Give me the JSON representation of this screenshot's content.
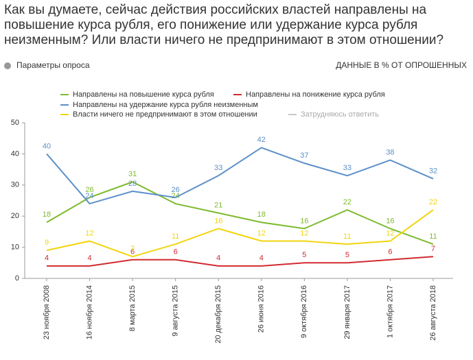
{
  "chart_data": {
    "type": "line",
    "title": "Как вы думаете, сейчас действия российских властей направлены на повышение курса рубля, его понижение или удержание курса рубля неизменным? Или власти ничего не предпринимают в этом отношении?",
    "survey_params": "Параметры опроса",
    "units_note": "ДАННЫЕ В % ОТ ОПРОШЕННЫХ",
    "categories": [
      "23 ноября 2008",
      "16 ноября 2014",
      "8 марта 2015",
      "9 августа 2015",
      "20 декабря 2015",
      "26 июня 2016",
      "9 октября 2016",
      "29 января 2017",
      "1 октября 2017",
      "26 августа 2018"
    ],
    "series": [
      {
        "name": "Направлены на повышение курса рубля",
        "color": "#7dba2e",
        "values": [
          18,
          26,
          31,
          24,
          21,
          18,
          16,
          22,
          16,
          11
        ]
      },
      {
        "name": "Направлены на понижение курса рубля",
        "color": "#d12a2f",
        "values": [
          4,
          4,
          6,
          6,
          4,
          4,
          5,
          5,
          6,
          7
        ]
      },
      {
        "name": "Направлены на удержание курса рубля неизменным",
        "color": "#5b8fc9",
        "values": [
          40,
          24,
          28,
          26,
          33,
          42,
          37,
          33,
          38,
          32
        ]
      },
      {
        "name": "Власти ничего не предпринимают в этом отношении",
        "color": "#f2d40c",
        "values": [
          9,
          12,
          7,
          11,
          16,
          12,
          12,
          11,
          12,
          22
        ]
      },
      {
        "name": "Затрудняюсь ответить",
        "color": "#c8c8c8",
        "values": [
          null,
          null,
          null,
          null,
          null,
          null,
          null,
          null,
          null,
          null
        ]
      }
    ],
    "ylim": [
      0,
      50
    ],
    "yticks": [
      0,
      10,
      20,
      30,
      40,
      50
    ],
    "grid": false
  }
}
